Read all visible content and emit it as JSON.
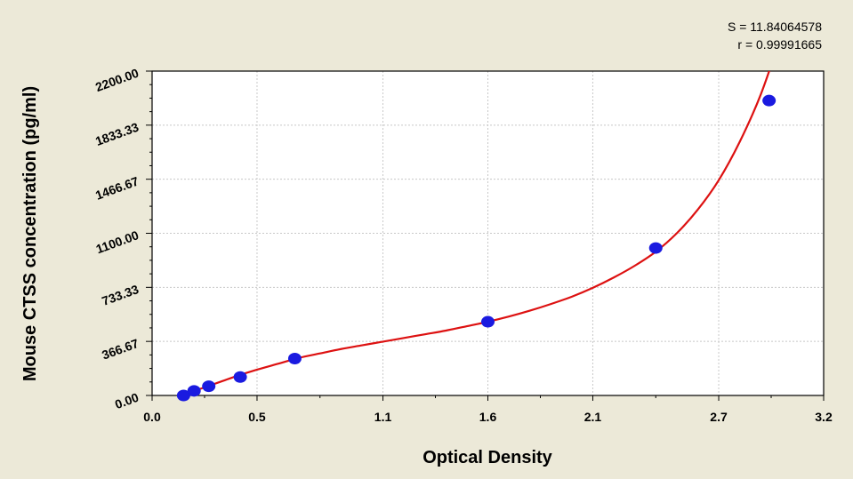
{
  "stats": {
    "s_text": "S = 11.84064578",
    "r_text": "r = 0.99991665"
  },
  "colors": {
    "background": "#ece9d8",
    "plot_area": "#ffffff",
    "curve": "#dd1111",
    "points": "#1a1ae0",
    "grid": "#c8c8c8"
  },
  "chart_data": {
    "type": "scatter",
    "xlabel": "Optical Density",
    "ylabel": "Mouse CTSS concentration (pg/ml)",
    "xlim": [
      0.0,
      3.2
    ],
    "ylim": [
      0,
      2200
    ],
    "x_ticks": [
      0.0,
      0.5,
      1.1,
      1.6,
      2.1,
      2.7,
      3.2
    ],
    "x_tick_labels": [
      "0.0",
      "0.5",
      "1.1",
      "1.6",
      "2.1",
      "2.7",
      "3.2"
    ],
    "y_ticks": [
      0,
      366.67,
      733.33,
      1100,
      1466.67,
      1833.33,
      2200
    ],
    "y_tick_labels": [
      "0.00",
      "366.67",
      "733.33",
      "1100.00",
      "1466.67",
      "1833.33",
      "2200.00"
    ],
    "grid": true,
    "series": [
      {
        "kind": "points",
        "x": [
          0.15,
          0.2,
          0.27,
          0.42,
          0.68,
          1.6,
          2.4,
          2.94
        ],
        "y": [
          0,
          31.25,
          62.5,
          125,
          250,
          500,
          1000,
          2000
        ]
      },
      {
        "kind": "fitted_curve",
        "x": [
          0.14,
          0.2,
          0.3,
          0.4,
          0.5,
          0.6,
          0.7,
          0.8,
          0.9,
          1.0,
          1.1,
          1.2,
          1.3,
          1.4,
          1.5,
          1.6,
          1.7,
          1.8,
          1.9,
          2.0,
          2.1,
          2.2,
          2.3,
          2.4,
          2.5,
          2.6,
          2.7,
          2.8,
          2.9,
          3.0
        ],
        "y": [
          0,
          30,
          80,
          130,
          175,
          215,
          255,
          285,
          315,
          340,
          365,
          390,
          415,
          440,
          470,
          500,
          535,
          575,
          620,
          670,
          730,
          800,
          880,
          975,
          1100,
          1260,
          1460,
          1720,
          2040,
          2450
        ]
      }
    ]
  }
}
